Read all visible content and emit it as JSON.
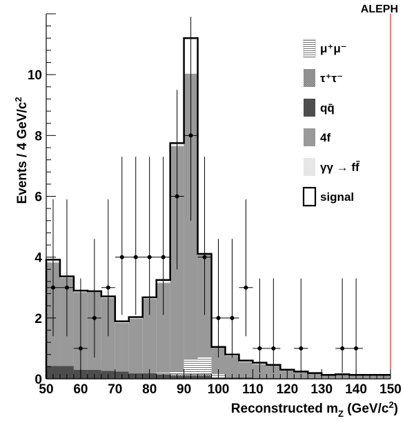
{
  "chart_data": {
    "type": "bar",
    "experiment_label": "ALEPH",
    "xlabel": {
      "main": "Reconstructed m",
      "sub": "Z",
      "unit_pre": " (GeV/c",
      "unit_sup": "2",
      "unit_post": ")"
    },
    "ylabel": {
      "main": "Events / 4 GeV/c",
      "sup": "2"
    },
    "xlim": [
      50,
      150
    ],
    "ylim": [
      0,
      12
    ],
    "xticks": [
      50,
      60,
      70,
      80,
      90,
      100,
      110,
      120,
      130,
      140,
      150
    ],
    "yticks": [
      0,
      2,
      4,
      6,
      8,
      10
    ],
    "bin_edges": [
      50,
      54,
      58,
      62,
      66,
      70,
      74,
      78,
      82,
      86,
      90,
      94,
      98,
      102,
      106,
      110,
      114,
      118,
      122,
      126,
      130,
      134,
      138,
      142,
      146,
      150
    ],
    "stack": {
      "qq": [
        0.42,
        0.42,
        0.3,
        0.3,
        0.26,
        0.24,
        0.18,
        0.18,
        0.15,
        0.1,
        0.1,
        0.1,
        0.05,
        0.05,
        0.05,
        0.03,
        0.03,
        0.02,
        0.02,
        0.02,
        0.01,
        0.01,
        0.01,
        0.01,
        0.01
      ],
      "tautau": [
        0.0,
        0.0,
        0.0,
        0.0,
        0.0,
        0.0,
        0.0,
        0.0,
        0.0,
        0.05,
        0.08,
        0.06,
        0.0,
        0.0,
        0.0,
        0.0,
        0.0,
        0.0,
        0.0,
        0.0,
        0.0,
        0.0,
        0.0,
        0.0,
        0.0
      ],
      "mumu": [
        0.0,
        0.0,
        0.0,
        0.0,
        0.0,
        0.0,
        0.0,
        0.0,
        0.05,
        0.1,
        0.45,
        0.55,
        0.1,
        0.0,
        0.0,
        0.0,
        0.0,
        0.0,
        0.0,
        0.0,
        0.0,
        0.0,
        0.0,
        0.0,
        0.0
      ],
      "four_f": [
        3.4,
        2.9,
        2.55,
        2.55,
        2.4,
        1.6,
        1.8,
        2.45,
        2.95,
        7.4,
        9.4,
        3.4,
        0.9,
        0.7,
        0.5,
        0.45,
        0.4,
        0.25,
        0.2,
        0.15,
        0.1,
        0.12,
        0.1,
        0.1,
        0.1
      ],
      "gamgam": [
        0.1,
        0.05,
        0.05,
        0.03,
        0.05,
        0.05,
        0.05,
        0.05,
        0.05,
        0.05,
        0.0,
        0.0,
        0.0,
        0.05,
        0.05,
        0.05,
        0.03,
        0.03,
        0.02,
        0.02,
        0.02,
        0.02,
        0.02,
        0.02,
        0.02
      ]
    },
    "signal_total": [
      3.92,
      3.37,
      2.9,
      2.88,
      2.71,
      1.89,
      2.03,
      2.68,
      3.25,
      7.75,
      11.2,
      4.11,
      1.05,
      0.8,
      0.6,
      0.53,
      0.46,
      0.3,
      0.24,
      0.19,
      0.13,
      0.15,
      0.13,
      0.13,
      0.13
    ],
    "data_points": {
      "x": [
        52,
        56,
        60,
        64,
        68,
        72,
        76,
        80,
        84,
        88,
        92,
        96,
        100,
        104,
        108,
        112,
        116,
        124,
        136,
        140
      ],
      "y": [
        3,
        3,
        1,
        2,
        3,
        4,
        4,
        4,
        4,
        6,
        8,
        4,
        2,
        2,
        3,
        1,
        1,
        1,
        1,
        1
      ],
      "err_up": [
        2.9,
        2.9,
        2.3,
        2.6,
        2.9,
        3.3,
        3.3,
        3.3,
        3.3,
        3.5,
        3.9,
        3.3,
        2.6,
        2.6,
        2.9,
        2.3,
        2.3,
        2.3,
        2.3,
        2.3
      ],
      "err_down": [
        1.6,
        1.6,
        0.8,
        1.3,
        1.6,
        1.9,
        1.9,
        1.9,
        1.9,
        2.4,
        2.8,
        1.9,
        1.3,
        1.3,
        1.6,
        0.8,
        0.8,
        0.8,
        0.8,
        0.8
      ]
    },
    "legend": [
      {
        "key": "mumu",
        "label": "μ⁺μ⁻",
        "style": "hstripe"
      },
      {
        "key": "tautau",
        "label": "τ⁺τ⁻",
        "style": "crosshatch"
      },
      {
        "key": "qq",
        "label": "qq̄",
        "style": "solid",
        "color": "#4d4d4d"
      },
      {
        "key": "four_f",
        "label": "4f",
        "style": "solid",
        "color": "#999999"
      },
      {
        "key": "gamgam",
        "label": "γγ → ff̄",
        "style": "solid",
        "color": "#e6e6e6"
      },
      {
        "key": "signal",
        "label": "signal",
        "style": "outline"
      }
    ],
    "legend_position": "top-right",
    "colors": {
      "qq": "#4d4d4d",
      "four_f": "#999999",
      "gamgam": "#e6e6e6",
      "signal": "#000000",
      "data": "#000000",
      "right_border": "#cc0000"
    }
  }
}
